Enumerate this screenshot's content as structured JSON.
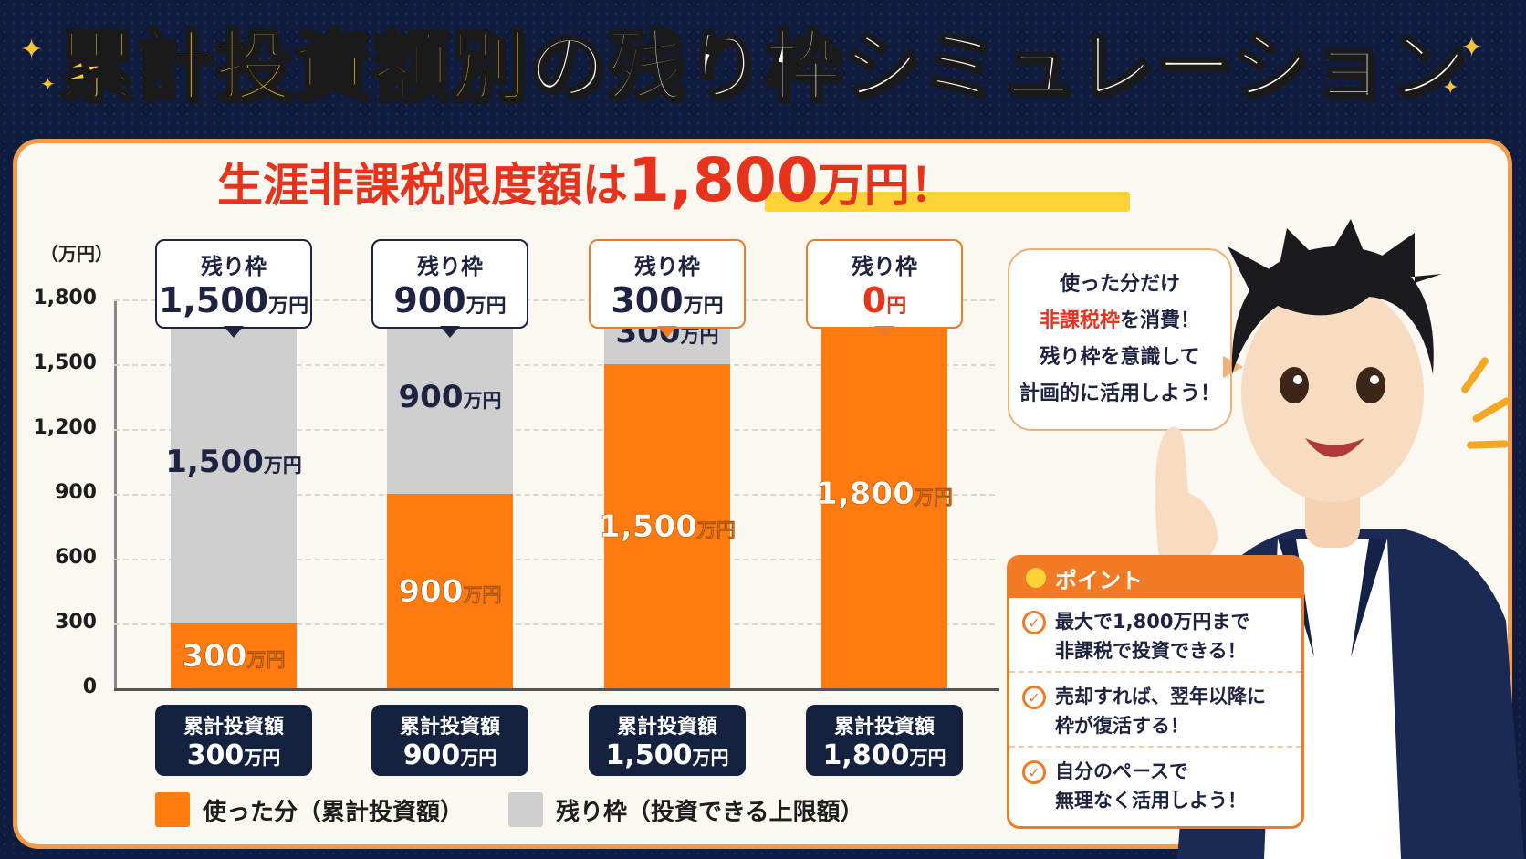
{
  "title": {
    "accent": "累計投資額別",
    "rest": "の残り枠シミュレーション"
  },
  "headline": {
    "prefix": "生涯非課税限度額は",
    "amount": "1,800",
    "suffix": "万円！"
  },
  "colors": {
    "used": "#ff7a0f",
    "remaining": "#cfcfcf",
    "navy": "#14213f",
    "accent_red": "#e8331c",
    "orange_border": "#f27a24"
  },
  "chart_data": {
    "type": "bar",
    "stacked": true,
    "ylabel": "（万円）",
    "ylim": [
      0,
      1800
    ],
    "yticks": [
      "1,800",
      "1,500",
      "1,200",
      "900",
      "600",
      "300",
      "0"
    ],
    "grid": true,
    "categories": [
      {
        "title": "累計投資額",
        "value": "300",
        "unit": "万円"
      },
      {
        "title": "累計投資額",
        "value": "900",
        "unit": "万円"
      },
      {
        "title": "累計投資額",
        "value": "1,500",
        "unit": "万円"
      },
      {
        "title": "累計投資額",
        "value": "1,800",
        "unit": "万円"
      }
    ],
    "series": [
      {
        "name": "使った分（累計投資額）",
        "values": [
          300,
          900,
          1500,
          1800
        ]
      },
      {
        "name": "残り枠（投資できる上限額）",
        "values": [
          1500,
          900,
          300,
          0
        ]
      }
    ],
    "segment_labels": {
      "used": [
        "300",
        "900",
        "1,500",
        "1,800"
      ],
      "remaining": [
        "1,500",
        "900",
        "300",
        ""
      ],
      "unit": "万円"
    },
    "callouts": [
      {
        "title": "残り枠",
        "value": "1,500",
        "unit": "万円"
      },
      {
        "title": "残り枠",
        "value": "900",
        "unit": "万円"
      },
      {
        "title": "残り枠",
        "value": "300",
        "unit": "万円"
      },
      {
        "title": "残り枠",
        "value": "0",
        "unit": "円"
      }
    ],
    "legend": [
      {
        "label": "使った分（累計投資額）",
        "color": "#ff7a0f"
      },
      {
        "label": "残り枠（投資できる上限額）",
        "color": "#cfcfcf"
      }
    ]
  },
  "speech": {
    "line1": "使った分だけ",
    "highlight": "非課税枠",
    "line2_rest": "を消費！",
    "line3": "残り枠を意識して",
    "line4": "計画的に活用しよう！"
  },
  "points": {
    "header": "ポイント",
    "items": [
      {
        "line1": "最大で1,800万円まで",
        "line2": "非課税で投資できる！"
      },
      {
        "line1": "売却すれば、翌年以降に",
        "line2": "枠が復活する！"
      },
      {
        "line1": "自分のペースで",
        "line2": "無理なく活用しよう！"
      }
    ]
  }
}
